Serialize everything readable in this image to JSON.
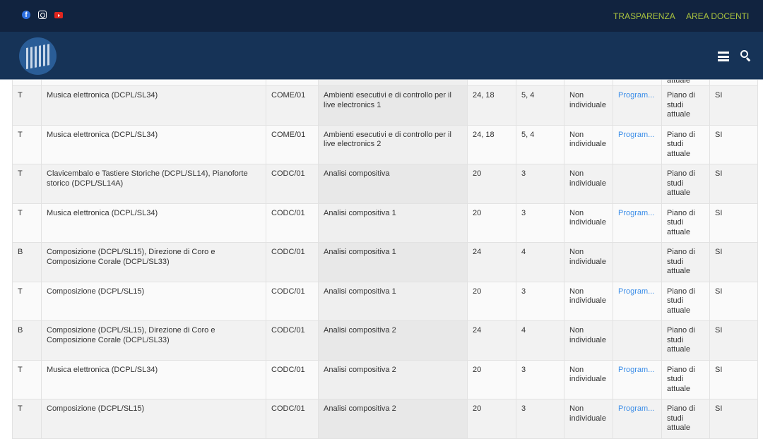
{
  "topbar": {
    "social": [
      "facebook-icon",
      "instagram-icon",
      "youtube-icon"
    ],
    "links": [
      "TRASPARENZA",
      "AREA DOCENTI"
    ]
  },
  "header": {
    "icons": [
      "menu-icon",
      "search-icon"
    ]
  },
  "table": {
    "partial_row": [
      "",
      "",
      "",
      "",
      "",
      "",
      "",
      "",
      "attuale",
      ""
    ],
    "rows": [
      [
        "T",
        "Musica elettronica (DCPL/SL34)",
        "COME/01",
        "Ambienti esecutivi e di controllo per il live electronics 1",
        "24, 18",
        "5, 4",
        "Non individuale",
        "Program...",
        "Piano di studi attuale",
        "SI"
      ],
      [
        "T",
        "Musica elettronica (DCPL/SL34)",
        "COME/01",
        "Ambienti esecutivi e di controllo per il live electronics 2",
        "24, 18",
        "5, 4",
        "Non individuale",
        "Program...",
        "Piano di studi attuale",
        "SI"
      ],
      [
        "T",
        "Clavicembalo e Tastiere Storiche (DCPL/SL14), Pianoforte storico (DCPL/SL14A)",
        "CODC/01",
        "Analisi compositiva",
        "20",
        "3",
        "Non individuale",
        "",
        "Piano di studi attuale",
        "SI"
      ],
      [
        "T",
        "Musica elettronica (DCPL/SL34)",
        "CODC/01",
        "Analisi compositiva 1",
        "20",
        "3",
        "Non individuale",
        "Program...",
        "Piano di studi attuale",
        "SI"
      ],
      [
        "B",
        "Composizione (DCPL/SL15), Direzione di Coro e Composizione Corale (DCPL/SL33)",
        "CODC/01",
        "Analisi compositiva 1",
        "24",
        "4",
        "Non individuale",
        "",
        "Piano di studi attuale",
        "SI"
      ],
      [
        "T",
        "Composizione (DCPL/SL15)",
        "CODC/01",
        "Analisi compositiva 1",
        "20",
        "3",
        "Non individuale",
        "Program...",
        "Piano di studi attuale",
        "SI"
      ],
      [
        "B",
        "Composizione (DCPL/SL15), Direzione di Coro e Composizione Corale (DCPL/SL33)",
        "CODC/01",
        "Analisi compositiva 2",
        "24",
        "4",
        "Non individuale",
        "",
        "Piano di studi attuale",
        "SI"
      ],
      [
        "T",
        "Musica elettronica (DCPL/SL34)",
        "CODC/01",
        "Analisi compositiva 2",
        "20",
        "3",
        "Non individuale",
        "Program...",
        "Piano di studi attuale",
        "SI"
      ],
      [
        "T",
        "Composizione (DCPL/SL15)",
        "CODC/01",
        "Analisi compositiva 2",
        "20",
        "3",
        "Non individuale",
        "Program...",
        "Piano di studi attuale",
        "SI"
      ]
    ]
  }
}
